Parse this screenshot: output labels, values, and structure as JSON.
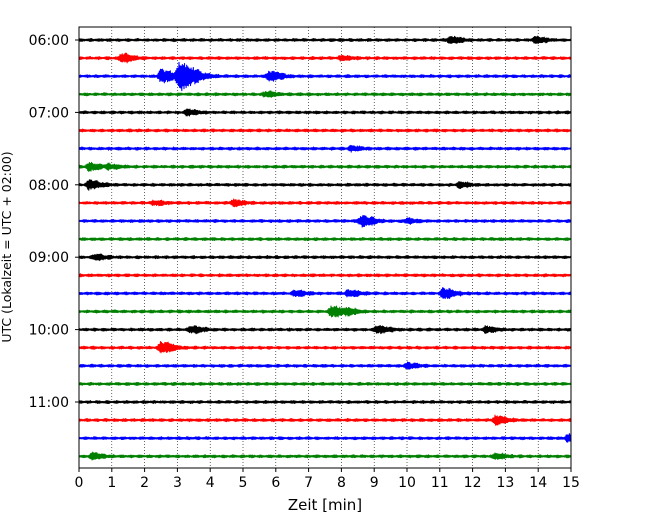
{
  "chart_data": {
    "type": "line",
    "subtype": "helicorder-seismogram",
    "xlabel": "Zeit  [min]",
    "ylabel": "UTC (Lokalzeit = UTC + 02:00)",
    "xlim": [
      0,
      15
    ],
    "x_ticks": [
      "0",
      "1",
      "2",
      "3",
      "4",
      "5",
      "6",
      "7",
      "8",
      "9",
      "10",
      "11",
      "12",
      "13",
      "14",
      "15"
    ],
    "y_tick_labels": [
      "06:00",
      "07:00",
      "08:00",
      "09:00",
      "10:00",
      "11:00"
    ],
    "trace_minutes": 15,
    "grid": "vertical dotted lines each minute",
    "trace_color_cycle": [
      "#000000",
      "#ff0000",
      "#0000ff",
      "#008000"
    ],
    "traces": [
      {
        "start": "06:00",
        "events": [
          {
            "t": 11.3,
            "amp": 0.5
          },
          {
            "t": 13.9,
            "amp": 0.45
          }
        ]
      },
      {
        "start": "06:15",
        "events": [
          {
            "t": 1.3,
            "amp": 0.6
          },
          {
            "t": 8.0,
            "amp": 0.3
          }
        ]
      },
      {
        "start": "06:30",
        "events": [
          {
            "t": 2.5,
            "amp": 0.9
          },
          {
            "t": 3.05,
            "amp": 1.9
          },
          {
            "t": 5.8,
            "amp": 0.7
          }
        ]
      },
      {
        "start": "06:45",
        "events": [
          {
            "t": 5.7,
            "amp": 0.35
          }
        ]
      },
      {
        "start": "07:00",
        "events": [
          {
            "t": 3.3,
            "amp": 0.4
          }
        ]
      },
      {
        "start": "07:15",
        "events": []
      },
      {
        "start": "07:30",
        "events": [
          {
            "t": 8.3,
            "amp": 0.3
          }
        ]
      },
      {
        "start": "07:45",
        "events": [
          {
            "t": 0.3,
            "amp": 0.5
          },
          {
            "t": 0.9,
            "amp": 0.3
          }
        ]
      },
      {
        "start": "08:00",
        "events": [
          {
            "t": 0.3,
            "amp": 0.6
          },
          {
            "t": 11.6,
            "amp": 0.35
          }
        ]
      },
      {
        "start": "08:15",
        "events": [
          {
            "t": 2.3,
            "amp": 0.3
          },
          {
            "t": 4.7,
            "amp": 0.4
          }
        ]
      },
      {
        "start": "08:30",
        "events": [
          {
            "t": 8.6,
            "amp": 0.75
          },
          {
            "t": 10.0,
            "amp": 0.3
          }
        ]
      },
      {
        "start": "08:45",
        "events": []
      },
      {
        "start": "09:00",
        "events": [
          {
            "t": 0.5,
            "amp": 0.35
          }
        ]
      },
      {
        "start": "09:15",
        "events": []
      },
      {
        "start": "09:30",
        "events": [
          {
            "t": 6.6,
            "amp": 0.4
          },
          {
            "t": 8.2,
            "amp": 0.45
          },
          {
            "t": 11.1,
            "amp": 0.7
          }
        ]
      },
      {
        "start": "09:45",
        "events": [
          {
            "t": 7.7,
            "amp": 0.75
          },
          {
            "t": 8.2,
            "amp": 0.35
          }
        ]
      },
      {
        "start": "10:00",
        "events": [
          {
            "t": 3.4,
            "amp": 0.5
          },
          {
            "t": 9.1,
            "amp": 0.5
          },
          {
            "t": 12.4,
            "amp": 0.4
          }
        ]
      },
      {
        "start": "10:15",
        "events": [
          {
            "t": 2.5,
            "amp": 0.8
          }
        ]
      },
      {
        "start": "10:30",
        "events": [
          {
            "t": 10.0,
            "amp": 0.35
          }
        ]
      },
      {
        "start": "10:45",
        "events": []
      },
      {
        "start": "11:00",
        "events": []
      },
      {
        "start": "11:15",
        "events": [
          {
            "t": 12.7,
            "amp": 0.6
          }
        ]
      },
      {
        "start": "11:30",
        "events": [
          {
            "t": 14.9,
            "amp": 0.5
          }
        ]
      },
      {
        "start": "11:45",
        "events": [
          {
            "t": 0.4,
            "amp": 0.45
          },
          {
            "t": 12.7,
            "amp": 0.35
          }
        ]
      }
    ]
  }
}
